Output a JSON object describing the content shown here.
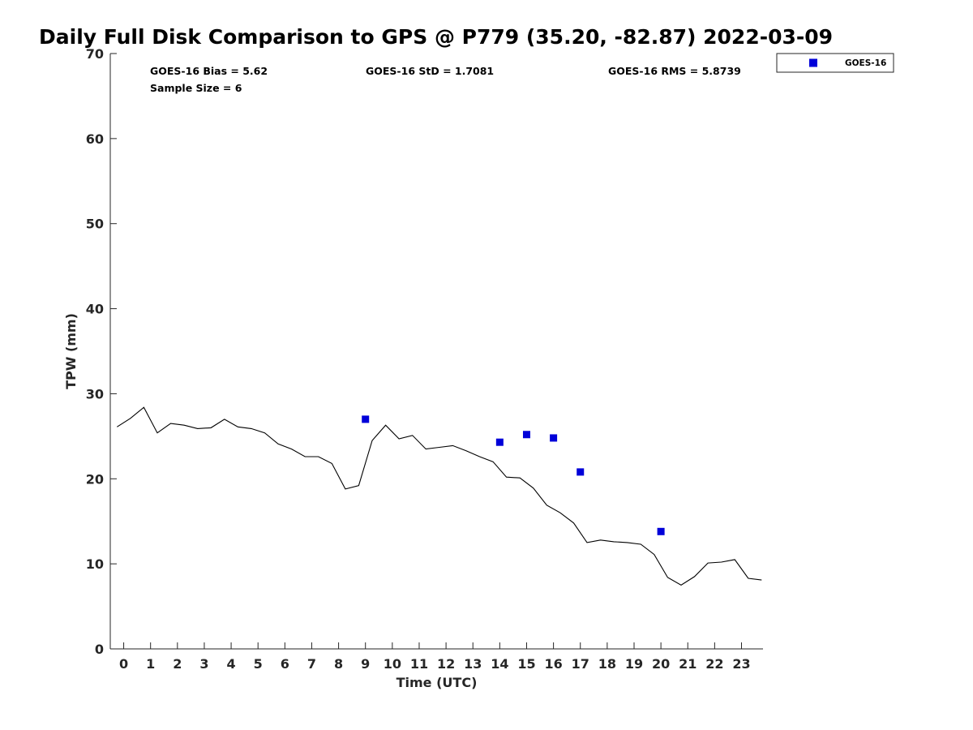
{
  "chart_data": {
    "type": "line",
    "title": "Daily Full Disk Comparison to GPS @ P779 (35.20, -82.87) 2022-03-09",
    "xlabel": "Time (UTC)",
    "ylabel": "TPW (mm)",
    "xlim": [
      -0.5,
      23.8
    ],
    "ylim": [
      0,
      70
    ],
    "x_ticks": [
      0,
      1,
      2,
      3,
      4,
      5,
      6,
      7,
      8,
      9,
      10,
      11,
      12,
      13,
      14,
      15,
      16,
      17,
      18,
      19,
      20,
      21,
      22,
      23
    ],
    "x_tick_labels": [
      "0",
      "1",
      "2",
      "3",
      "4",
      "5",
      "6",
      "7",
      "8",
      "9",
      "10",
      "11",
      "12",
      "13",
      "14",
      "15",
      "16",
      "17",
      "18",
      "19",
      "20",
      "21",
      "22",
      "23"
    ],
    "y_ticks": [
      0,
      10,
      20,
      30,
      40,
      50,
      60,
      70
    ],
    "y_tick_labels": [
      "0",
      "10",
      "20",
      "30",
      "40",
      "50",
      "60",
      "70"
    ],
    "grid": false,
    "legend_position": "outside-top-right",
    "stats": {
      "bias": "GOES-16 Bias = 5.62",
      "std": "GOES-16 StD = 1.7081",
      "rms": "GOES-16 RMS = 5.8739",
      "sample": "Sample Size = 6"
    },
    "series": [
      {
        "type": "line",
        "color": "#000000",
        "x": [
          -0.25,
          0.25,
          0.75,
          1.25,
          1.75,
          2.25,
          2.75,
          3.25,
          3.75,
          4.25,
          4.75,
          5.25,
          5.75,
          6.25,
          6.75,
          7.25,
          7.75,
          8.25,
          8.75,
          9.25,
          9.75,
          10.25,
          10.75,
          11.25,
          11.75,
          12.25,
          12.75,
          13.25,
          13.75,
          14.25,
          14.75,
          15.25,
          15.75,
          16.25,
          16.75,
          17.25,
          17.75,
          18.25,
          18.75,
          19.25,
          19.75,
          20.25,
          20.75,
          21.25,
          21.75,
          22.25,
          22.75,
          23.25,
          23.75
        ],
        "values": [
          26.1,
          27.1,
          28.4,
          25.4,
          26.5,
          26.3,
          25.9,
          26.0,
          27.0,
          26.1,
          25.9,
          25.4,
          24.1,
          23.5,
          22.6,
          22.6,
          21.8,
          18.8,
          19.2,
          24.5,
          26.3,
          24.7,
          25.1,
          23.5,
          23.7,
          23.9,
          23.3,
          22.6,
          22.0,
          20.2,
          20.1,
          18.9,
          16.9,
          16.0,
          14.8,
          12.5,
          12.8,
          12.6,
          12.5,
          12.3,
          11.1,
          8.4,
          7.5,
          8.5,
          10.1,
          10.2,
          10.5,
          8.3,
          8.1
        ]
      },
      {
        "name": "GOES-16",
        "type": "scatter",
        "color": "#0000d9",
        "x": [
          9,
          14,
          15,
          16,
          17,
          20
        ],
        "values": [
          27.0,
          24.3,
          25.2,
          24.8,
          20.8,
          13.8
        ]
      }
    ]
  }
}
